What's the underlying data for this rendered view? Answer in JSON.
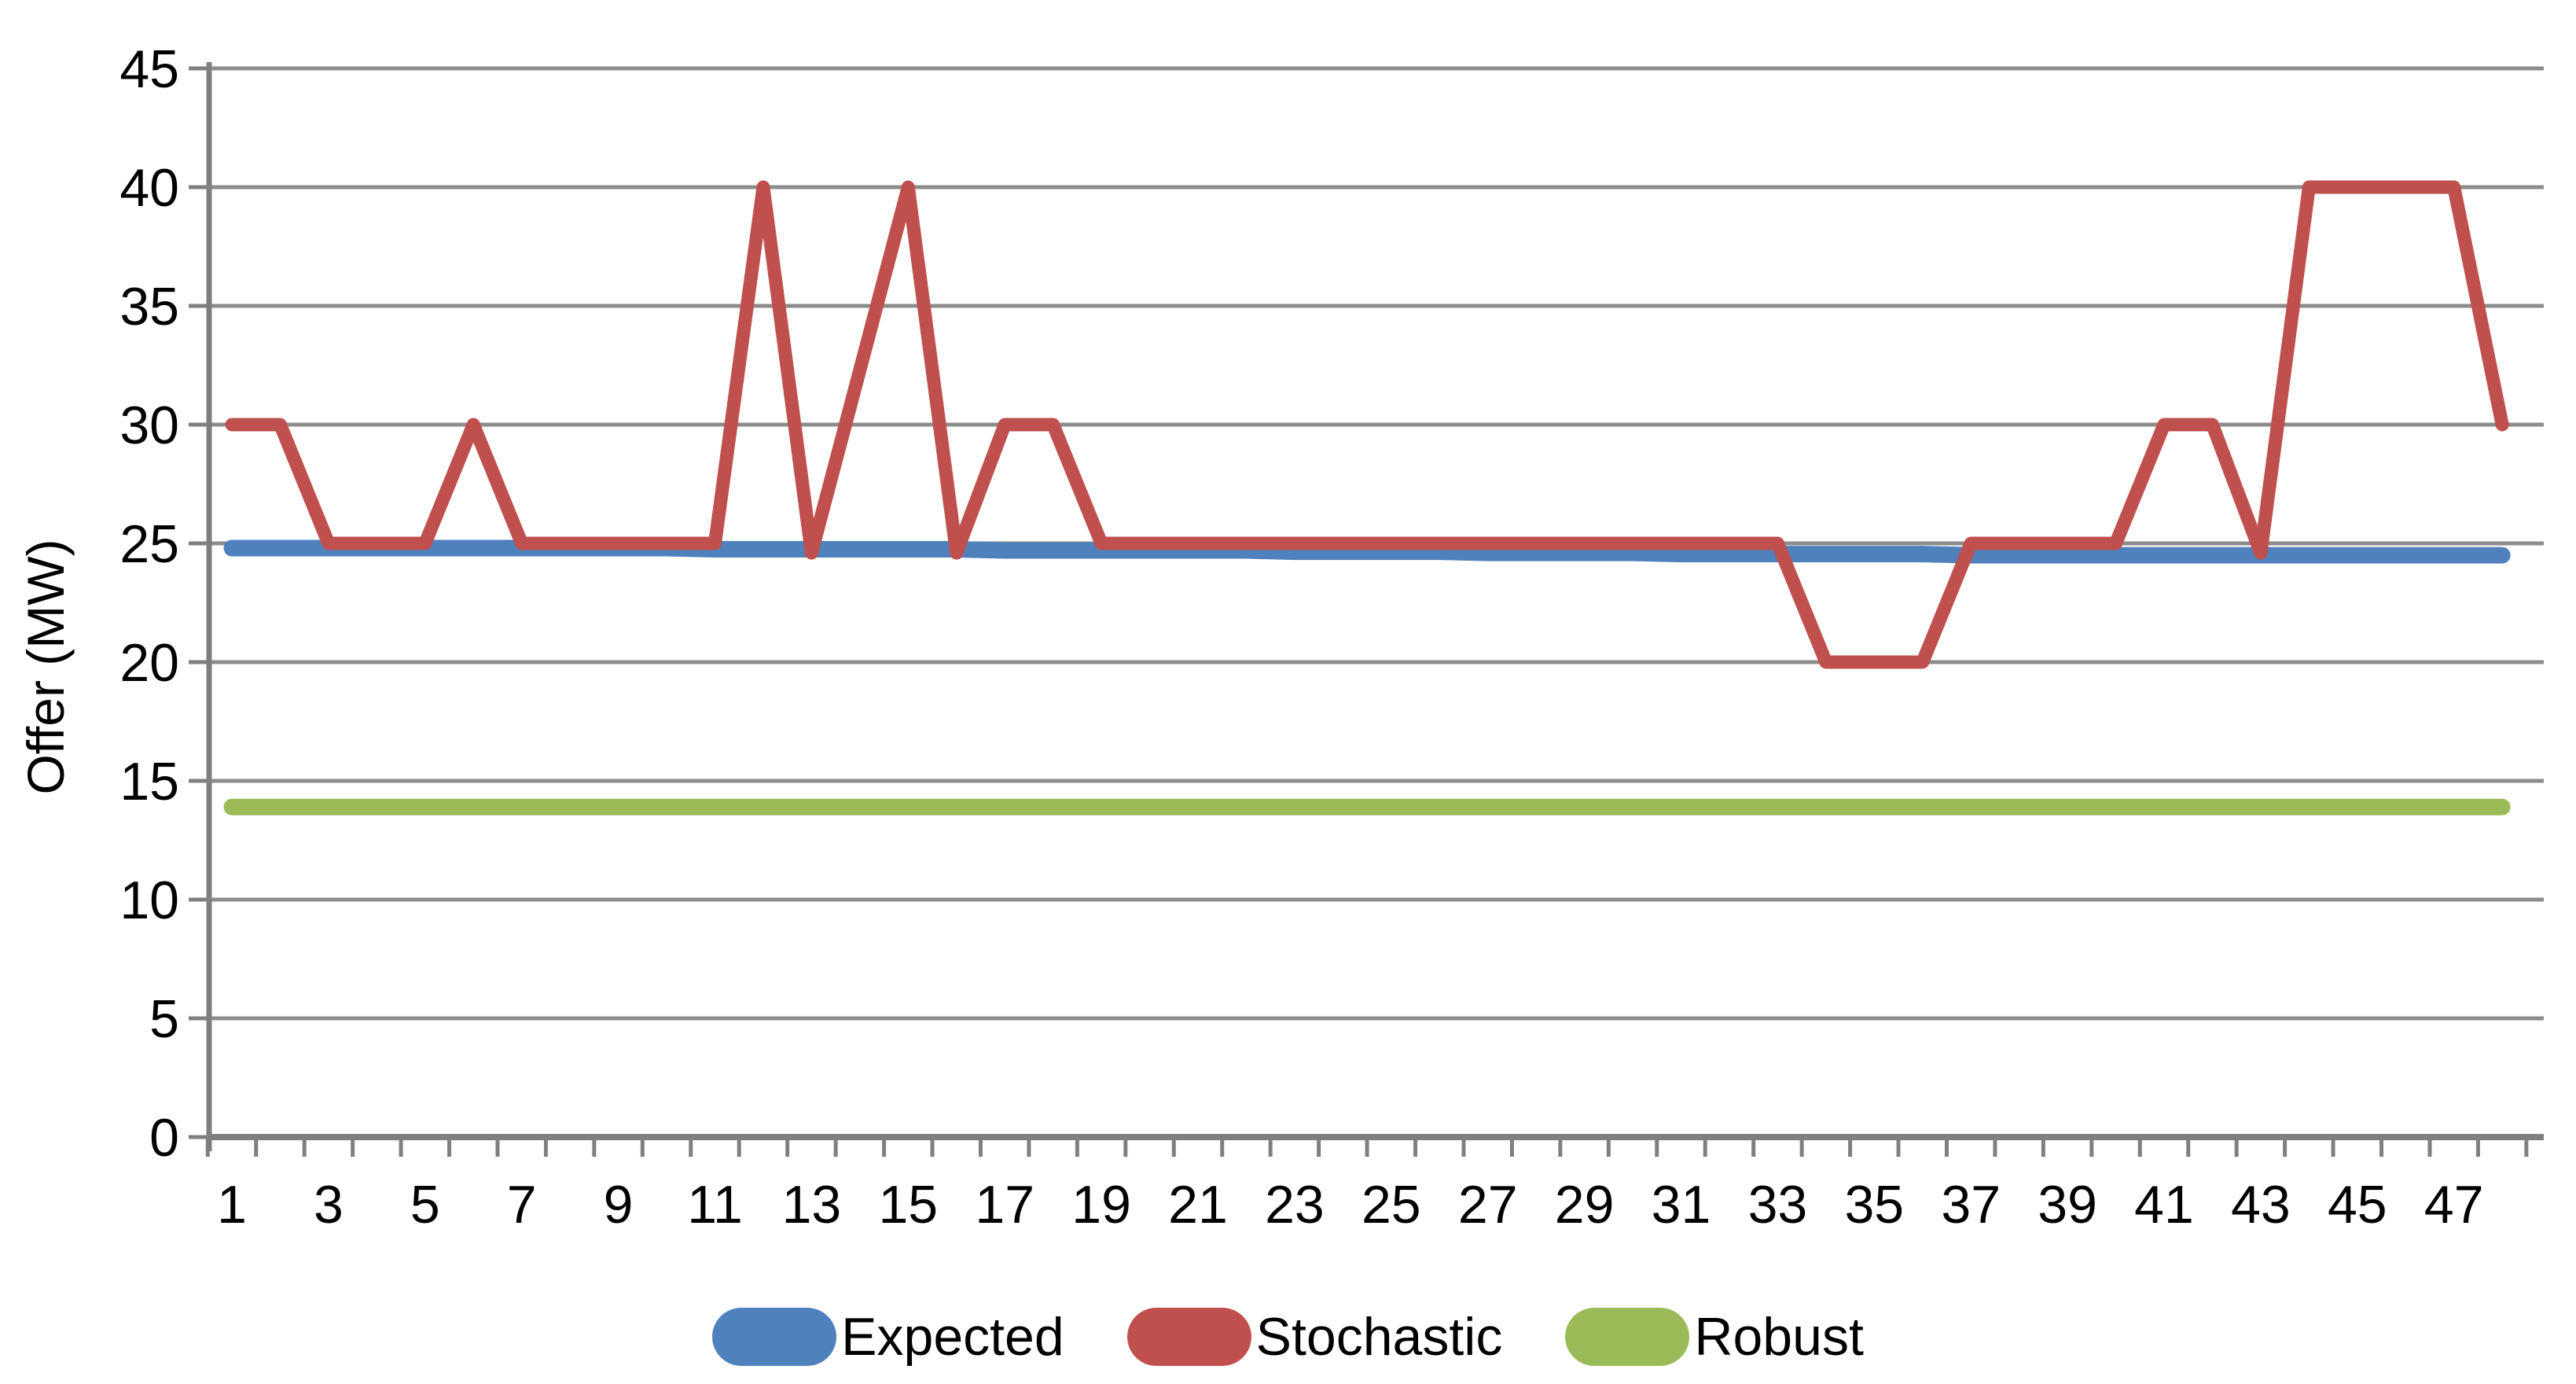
{
  "chart_data": {
    "type": "line",
    "title": "",
    "xlabel": "",
    "ylabel": "Offer (MW)",
    "ylim": [
      0,
      45
    ],
    "y_ticks": [
      0,
      5,
      10,
      15,
      20,
      25,
      30,
      35,
      40,
      45
    ],
    "x_tick_labels": [
      "1",
      "3",
      "5",
      "7",
      "9",
      "11",
      "13",
      "15",
      "17",
      "19",
      "21",
      "23",
      "25",
      "27",
      "29",
      "31",
      "33",
      "35",
      "37",
      "39",
      "41",
      "43",
      "45",
      "47"
    ],
    "x": [
      1,
      2,
      3,
      4,
      5,
      6,
      7,
      8,
      9,
      10,
      11,
      12,
      13,
      14,
      15,
      16,
      17,
      18,
      19,
      20,
      21,
      22,
      23,
      24,
      25,
      26,
      27,
      28,
      29,
      30,
      31,
      32,
      33,
      34,
      35,
      36,
      37,
      38,
      39,
      40,
      41,
      42,
      43,
      44,
      45,
      46,
      47,
      48
    ],
    "grid": true,
    "legend_position": "bottom-center",
    "series": [
      {
        "name": "Expected",
        "color": "#4F81BD",
        "line_width": 21,
        "values": [
          24.8,
          24.8,
          24.8,
          24.8,
          24.8,
          24.8,
          24.8,
          24.8,
          24.8,
          24.8,
          24.75,
          24.75,
          24.75,
          24.75,
          24.75,
          24.75,
          24.7,
          24.7,
          24.7,
          24.7,
          24.7,
          24.7,
          24.65,
          24.65,
          24.65,
          24.65,
          24.6,
          24.6,
          24.6,
          24.6,
          24.55,
          24.55,
          24.55,
          24.55,
          24.55,
          24.55,
          24.5,
          24.5,
          24.5,
          24.5,
          24.5,
          24.5,
          24.5,
          24.5,
          24.5,
          24.5,
          24.5,
          24.5
        ]
      },
      {
        "name": "Stochastic",
        "color": "#C0504D",
        "line_width": 17,
        "values": [
          30,
          30,
          25,
          25,
          25,
          30,
          25,
          25,
          25,
          25,
          25,
          40,
          24.6,
          32.3,
          40,
          24.6,
          30,
          30,
          25,
          25,
          25,
          25,
          25,
          25,
          25,
          25,
          25,
          25,
          25,
          25,
          25,
          25,
          25,
          20,
          20,
          20,
          25,
          25,
          25,
          25,
          30,
          30,
          24.6,
          40,
          40,
          40,
          40,
          30
        ]
      },
      {
        "name": "Robust",
        "color": "#9BBB59",
        "line_width": 21,
        "values": [
          13.9,
          13.9,
          13.9,
          13.9,
          13.9,
          13.9,
          13.9,
          13.9,
          13.9,
          13.9,
          13.9,
          13.9,
          13.9,
          13.9,
          13.9,
          13.9,
          13.9,
          13.9,
          13.9,
          13.9,
          13.9,
          13.9,
          13.9,
          13.9,
          13.9,
          13.9,
          13.9,
          13.9,
          13.9,
          13.9,
          13.9,
          13.9,
          13.9,
          13.9,
          13.9,
          13.9,
          13.9,
          13.9,
          13.9,
          13.9,
          13.9,
          13.9,
          13.9,
          13.9,
          13.9,
          13.9,
          13.9,
          13.9
        ]
      }
    ]
  },
  "colors": {
    "background": "#FFFFFF",
    "gridline": "#8C8C8C",
    "axis": "#7F7F7F",
    "text": "#000000"
  }
}
